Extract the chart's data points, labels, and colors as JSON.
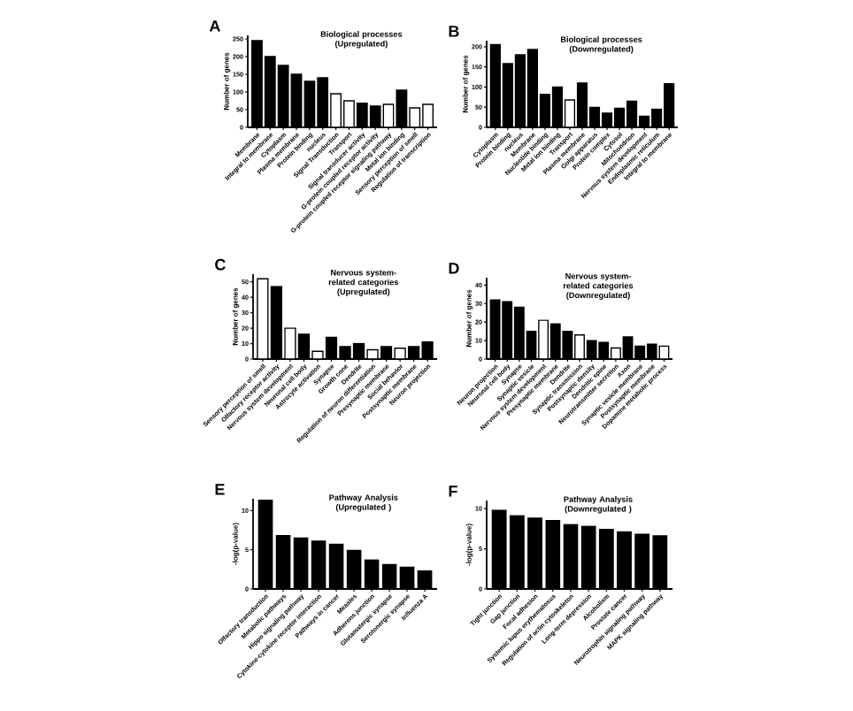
{
  "chart_data": [
    {
      "type": "bar",
      "title": "Biological processes",
      "subtitle": "(Upregulated)",
      "ylabel": "Number of genes",
      "annotations": [
        "A"
      ],
      "categories": [
        "Membrane",
        "Integral to membrane",
        "Cytoplasm",
        "Plasma membrane",
        "Protein binding",
        "nucleus",
        "Signal Transduction",
        "Transport",
        "Signal transducer activity",
        "G-protein coupled receptor activity",
        "G-protein coupled receptor signaling pathway",
        "Metal ion binding",
        "Sensory perception of smell",
        "Regulation of transcription"
      ],
      "values": [
        245,
        200,
        175,
        150,
        130,
        140,
        95,
        75,
        68,
        60,
        65,
        105,
        55,
        65
      ],
      "colors": [
        "#000000",
        "#000000",
        "#000000",
        "#000000",
        "#000000",
        "#000000",
        "#ffffff",
        "#ffffff",
        "#000000",
        "#000000",
        "#ffffff",
        "#000000",
        "#ffffff",
        "#ffffff"
      ],
      "ylim": [
        0,
        260
      ],
      "yticks": [
        0,
        50,
        100,
        150,
        200,
        250
      ]
    },
    {
      "type": "bar",
      "title": "Biological processes",
      "subtitle": "(Downregulated)",
      "ylabel": "Number of genes",
      "annotations": [
        "B"
      ],
      "categories": [
        "Cytoplasm",
        "Protein binding",
        "nucleus",
        "Membrane",
        "Nucleotide binding",
        "Metal ion binding",
        "Transport",
        "Plasma membrane",
        "Golgi apparatus",
        "Protein complex",
        "Cytosol",
        "Mitochondrion",
        "Nervous system development",
        "Endoplasmic reticulum",
        "Integral to membrane"
      ],
      "values": [
        205,
        158,
        180,
        193,
        82,
        100,
        68,
        110,
        50,
        35,
        47,
        65,
        28,
        45,
        108
      ],
      "colors": [
        "#000000",
        "#000000",
        "#000000",
        "#000000",
        "#000000",
        "#000000",
        "#ffffff",
        "#000000",
        "#000000",
        "#000000",
        "#000000",
        "#000000",
        "#000000",
        "#000000",
        "#000000"
      ],
      "ylim": [
        0,
        215
      ],
      "yticks": [
        0,
        50,
        100,
        150,
        200
      ]
    },
    {
      "type": "bar",
      "title": "Nervous system-related categories",
      "subtitle": "(Upregulated)",
      "ylabel": "Number of genes",
      "annotations": [
        "C"
      ],
      "categories": [
        "Sensory perception of smell",
        "Olfactory receptor activity",
        "Nervous system development",
        "Neuronal cell body",
        "Astrocyte activation",
        "Synapse",
        "Growth cone",
        "Dendrite",
        "Regulation of neuron differentiation",
        "Presynaptic membrane",
        "Social behavior",
        "Postsynaptic membrane",
        "Neuron projection"
      ],
      "values": [
        52,
        47,
        20,
        16,
        5,
        14,
        8,
        10,
        6,
        8,
        7,
        8,
        11
      ],
      "colors": [
        "#ffffff",
        "#000000",
        "#ffffff",
        "#000000",
        "#ffffff",
        "#000000",
        "#000000",
        "#000000",
        "#ffffff",
        "#000000",
        "#ffffff",
        "#000000",
        "#000000"
      ],
      "ylim": [
        0,
        55
      ],
      "yticks": [
        0,
        10,
        20,
        30,
        40,
        50
      ]
    },
    {
      "type": "bar",
      "title": "Nervous system-related categories",
      "subtitle": "(Downregulated)",
      "ylabel": "Number of genes",
      "annotations": [
        "D"
      ],
      "categories": [
        "Neuron projection",
        "Neuronal cell body",
        "Synapse",
        "Synaptic vesicle",
        "Nervous system development",
        "Presynaptic membrane",
        "Dendrite",
        "Synaptic transmission",
        "Postsynaptic density",
        "Dendritic spine",
        "Neurotransmitter secretion",
        "Axon",
        "Synaptic vesicle membrane",
        "Postsynaptic membrane",
        "Dopamine metabolic process"
      ],
      "values": [
        32,
        31,
        28,
        15,
        21,
        19,
        15,
        13,
        10,
        9,
        6,
        12,
        7,
        8,
        7
      ],
      "colors": [
        "#000000",
        "#000000",
        "#000000",
        "#000000",
        "#ffffff",
        "#000000",
        "#000000",
        "#ffffff",
        "#000000",
        "#000000",
        "#ffffff",
        "#000000",
        "#000000",
        "#000000",
        "#ffffff"
      ],
      "ylim": [
        0,
        44
      ],
      "yticks": [
        0,
        10,
        20,
        30,
        40
      ]
    },
    {
      "type": "bar",
      "title": "Pathway Analysis",
      "subtitle": "(Upregulated )",
      "ylabel": "-log(p-value)",
      "annotations": [
        "E"
      ],
      "categories": [
        "Olfactory transduction",
        "Metabolic pathways",
        "Hippo signaling pathway",
        "Cytokine-cytokine receptor interaction",
        "Pathways in cancer",
        "Measles",
        "Adherens junction",
        "Glutamatergic synapse",
        "Serotonergic synapse",
        "Influenza A"
      ],
      "values": [
        11.3,
        6.8,
        6.5,
        6.1,
        5.7,
        4.9,
        3.7,
        3.1,
        2.8,
        2.3
      ],
      "color": "#000000",
      "ylim": [
        0,
        11.5
      ],
      "yticks": [
        0,
        5,
        10
      ]
    },
    {
      "type": "bar",
      "title": "Pathway Analysis",
      "subtitle": "(Downregulated )",
      "ylabel": "-log(p-value)",
      "annotations": [
        "F"
      ],
      "categories": [
        "Tight junction",
        "Gap junction",
        "Focal adhesion",
        "Systemic lupus erythematosus",
        "Regulation of actin cytoskeleton",
        "Long-term depression",
        "Alcoholism",
        "Prostate cancer",
        "Neurotrophin signaling pathway",
        "MAPK signaling pathway"
      ],
      "values": [
        9.8,
        9.1,
        8.8,
        8.5,
        8.0,
        7.8,
        7.4,
        7.1,
        6.8,
        6.6
      ],
      "color": "#000000",
      "ylim": [
        0,
        11
      ],
      "yticks": [
        0,
        5,
        10
      ]
    }
  ]
}
